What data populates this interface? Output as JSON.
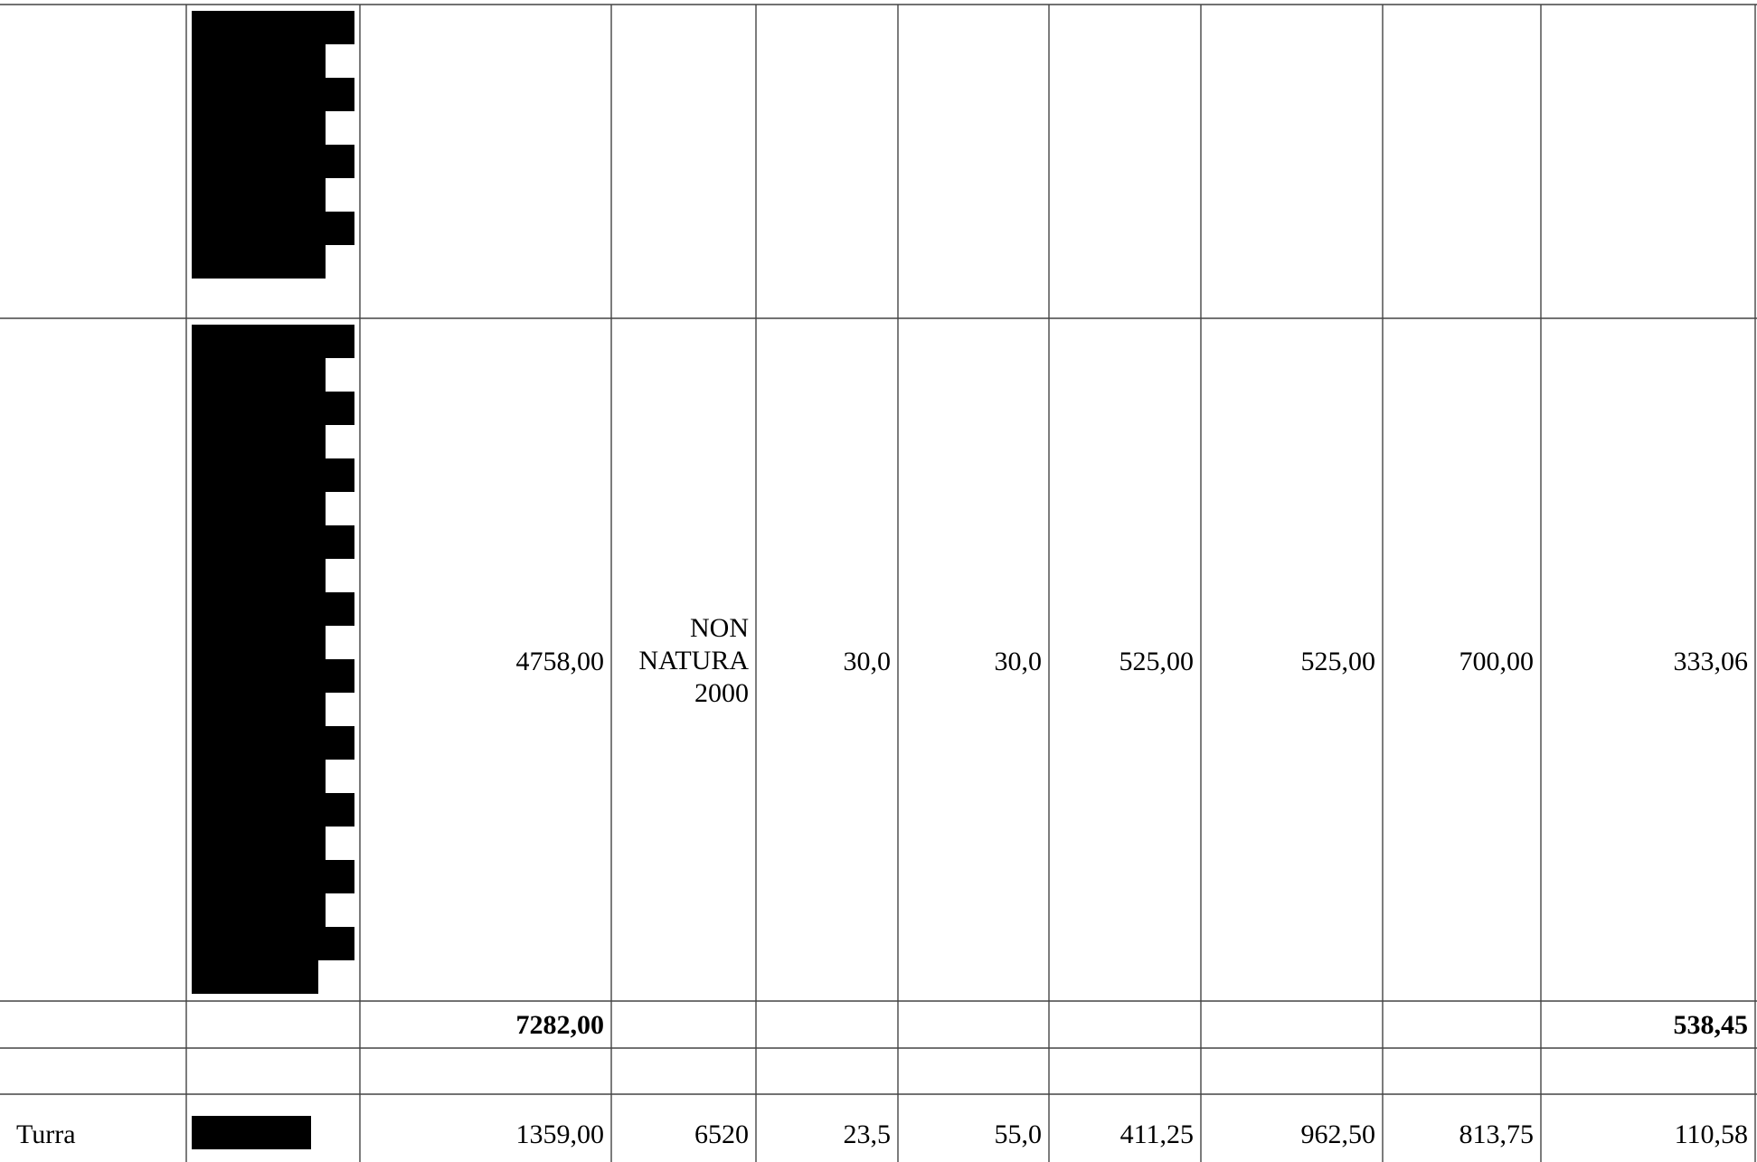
{
  "table": {
    "rows": [
      {
        "id": "row-a",
        "cells": [
          "",
          "[redacted]",
          "",
          "",
          "",
          "",
          "",
          "",
          "",
          ""
        ]
      },
      {
        "id": "row-b",
        "cells": [
          "",
          "[redacted]",
          "4758,00",
          "NON NATURA 2000",
          "30,0",
          "30,0",
          "525,00",
          "525,00",
          "700,00",
          "333,06"
        ]
      },
      {
        "id": "row-total",
        "cells": [
          "",
          "",
          "7282,00",
          "",
          "",
          "",
          "",
          "",
          "",
          "538,45"
        ]
      },
      {
        "id": "row-empty",
        "cells": [
          "",
          "",
          "",
          "",
          "",
          "",
          "",
          "",
          "",
          ""
        ]
      },
      {
        "id": "row-turra",
        "cells": [
          "Turra",
          "[redacted]",
          "1359,00",
          "6520",
          "23,5",
          "55,0",
          "411,25",
          "962,50",
          "813,75",
          "110,58"
        ]
      }
    ],
    "non_natura_lines": [
      "NON",
      "NATURA",
      "2000"
    ]
  }
}
